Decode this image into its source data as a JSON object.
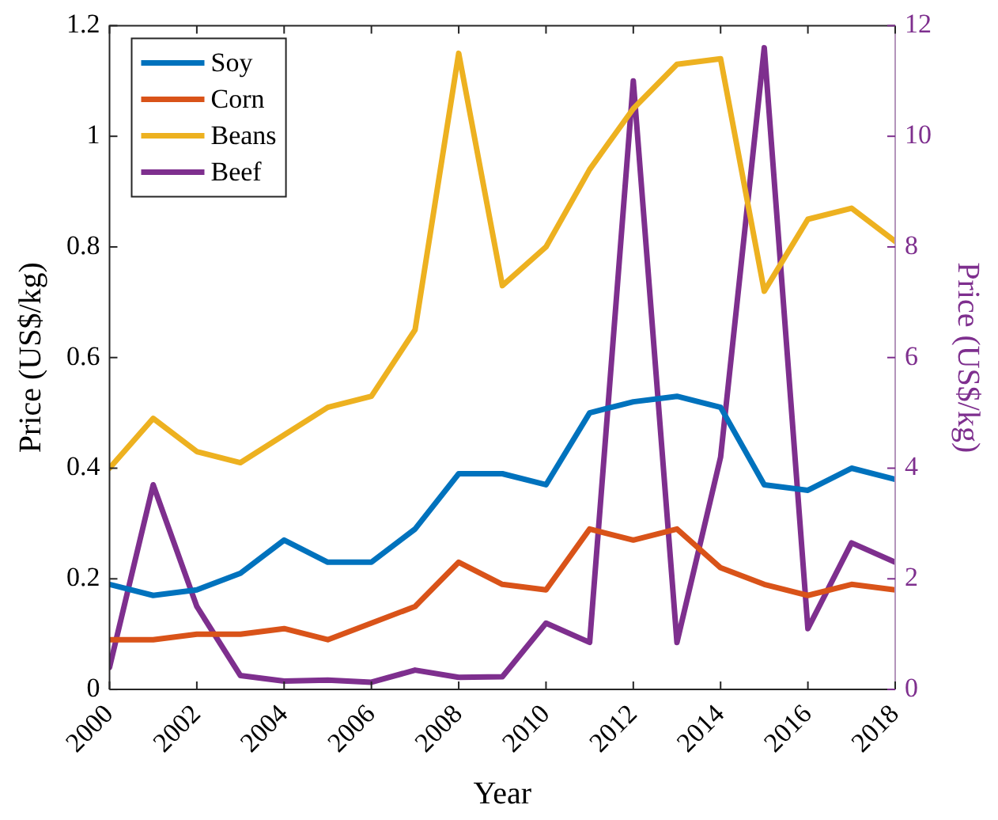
{
  "chart_data": {
    "type": "line",
    "xlabel": "Year",
    "ylabel": "Price (US$/kg)",
    "y2label": "Price (US$/kg)",
    "x": [
      2000,
      2001,
      2002,
      2003,
      2004,
      2005,
      2006,
      2007,
      2008,
      2009,
      2010,
      2011,
      2012,
      2013,
      2014,
      2015,
      2016,
      2017,
      2018
    ],
    "series": [
      {
        "name": "Soy",
        "color": "#0072bd",
        "values": [
          0.19,
          0.17,
          0.18,
          0.21,
          0.27,
          0.23,
          0.23,
          0.29,
          0.39,
          0.39,
          0.37,
          0.5,
          0.52,
          0.53,
          0.51,
          0.37,
          0.36,
          0.4,
          0.38
        ]
      },
      {
        "name": "Corn",
        "color": "#d95319",
        "values": [
          0.09,
          0.09,
          0.1,
          0.1,
          0.11,
          0.09,
          0.12,
          0.15,
          0.23,
          0.19,
          0.18,
          0.29,
          0.27,
          0.29,
          0.22,
          0.19,
          0.17,
          0.19,
          0.18
        ]
      },
      {
        "name": "Beans",
        "color": "#edb120",
        "values": [
          0.4,
          0.49,
          0.43,
          0.41,
          0.46,
          0.51,
          0.53,
          0.65,
          1.15,
          0.73,
          0.8,
          0.94,
          1.05,
          1.13,
          1.14,
          0.72,
          0.85,
          0.87,
          0.81
        ]
      },
      {
        "name": "Beef",
        "color": "#7e2f8e",
        "axis": "y2",
        "values": [
          0.4,
          3.7,
          1.5,
          0.25,
          0.15,
          0.17,
          0.13,
          0.35,
          0.22,
          0.23,
          1.2,
          0.85,
          11.0,
          0.85,
          4.2,
          11.6,
          1.1,
          2.65,
          2.3
        ]
      }
    ],
    "xlim": [
      2000,
      2018
    ],
    "xticks": [
      2000,
      2002,
      2004,
      2006,
      2008,
      2010,
      2012,
      2014,
      2016,
      2018
    ],
    "ylim": [
      0,
      1.2
    ],
    "yticks": [
      0,
      0.2,
      0.4,
      0.6,
      0.8,
      1,
      1.2
    ],
    "y2lim": [
      0,
      12
    ],
    "y2ticks": [
      0,
      2,
      4,
      6,
      8,
      10,
      12
    ],
    "grid": false,
    "legend": "top left",
    "marker": "none",
    "line_style": "solid"
  }
}
